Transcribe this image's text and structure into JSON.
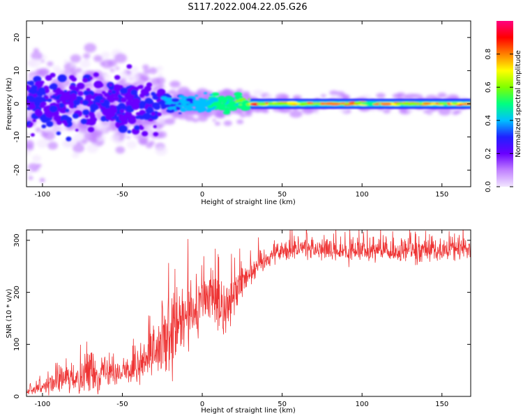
{
  "figure": {
    "title": "S117.2022.004.22.05.G26"
  },
  "chart_data": [
    {
      "type": "heatmap",
      "xlabel": "Height of straight line (km)",
      "ylabel": "Frequency (Hz)",
      "xlim": [
        -110,
        168
      ],
      "ylim": [
        -25,
        25
      ],
      "xticks": [
        -100,
        -50,
        0,
        50,
        100,
        150
      ],
      "yticks": [
        -20,
        -10,
        0,
        10,
        20
      ],
      "colorbar": {
        "label": "Normalized spectral amplitude",
        "range": [
          0,
          1
        ],
        "ticks": [
          0.0,
          0.2,
          0.4,
          0.6,
          0.8
        ],
        "tick_labels": [
          "0.0",
          "0.2",
          "0.4",
          "0.6",
          "0.8"
        ],
        "colormap": [
          "#f2e6ff",
          "#c080ff",
          "#6a00ff",
          "#2020ff",
          "#00c0ff",
          "#00ff80",
          "#80ff00",
          "#ffff00",
          "#ff8000",
          "#ff0000",
          "#ff0080"
        ]
      },
      "features": [
        {
          "x_range": [
            -110,
            -25
          ],
          "freq_center": 0,
          "freq_spread": 4,
          "amplitude": 0.25,
          "pattern": "scattered"
        },
        {
          "x_range": [
            -25,
            30
          ],
          "freq_center": 0,
          "freq_spread": 1.5,
          "amplitude": 0.5,
          "pattern": "transition"
        },
        {
          "x_range": [
            30,
            168
          ],
          "freq_center": 0,
          "freq_spread": 1,
          "amplitude": 0.85,
          "pattern": "steady line"
        }
      ]
    },
    {
      "type": "line",
      "xlabel": "Height of straight line (km)",
      "ylabel": "SNR (10 * v/v)",
      "xlim": [
        -110,
        168
      ],
      "ylim": [
        0,
        320
      ],
      "xticks": [
        -100,
        -50,
        0,
        50,
        100,
        150
      ],
      "yticks": [
        0,
        100,
        200,
        300
      ],
      "series": [
        {
          "color": "#ee3333",
          "x": [
            -110,
            -100,
            -90,
            -80,
            -70,
            -60,
            -50,
            -40,
            -30,
            -20,
            -15,
            -10,
            -5,
            0,
            5,
            10,
            15,
            20,
            25,
            30,
            35,
            40,
            45,
            50,
            60,
            70,
            80,
            90,
            100,
            110,
            120,
            130,
            140,
            150,
            160,
            168
          ],
          "y": [
            10,
            20,
            28,
            35,
            45,
            50,
            45,
            55,
            75,
            110,
            130,
            150,
            165,
            185,
            190,
            180,
            170,
            195,
            225,
            240,
            255,
            265,
            275,
            280,
            285,
            285,
            280,
            275,
            280,
            280,
            275,
            280,
            285,
            280,
            285,
            285
          ],
          "noise": [
            5,
            12,
            18,
            25,
            35,
            30,
            22,
            30,
            45,
            75,
            80,
            75,
            60,
            40,
            50,
            60,
            45,
            35,
            30,
            25,
            22,
            20,
            18,
            18,
            20,
            20,
            20,
            20,
            20,
            20,
            20,
            20,
            20,
            20,
            20,
            20
          ]
        }
      ]
    }
  ]
}
